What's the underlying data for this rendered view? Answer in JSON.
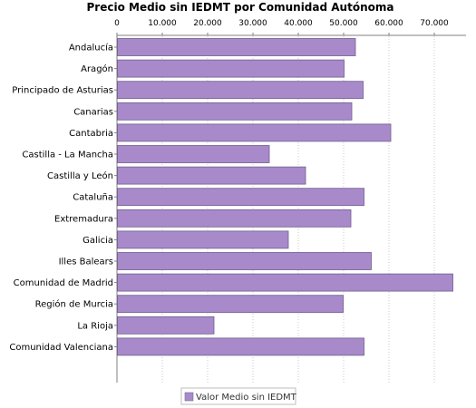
{
  "chart_data": {
    "type": "bar",
    "orientation": "horizontal",
    "title": "Precio Medio sin IEDMT por Comunidad Autónoma",
    "xlim": [
      0,
      77000
    ],
    "xticks": [
      0,
      10000,
      20000,
      30000,
      40000,
      50000,
      60000,
      70000
    ],
    "xtick_labels": [
      "0",
      "10.000",
      "20.000",
      "30.000",
      "40.000",
      "50.000",
      "60.000",
      "70.000"
    ],
    "axis_position": "top",
    "grid": true,
    "legend_position": "bottom",
    "categories": [
      "Andalucía",
      "Aragón",
      "Principado de Asturias",
      "Canarias",
      "Cantabria",
      "Castilla - La Mancha",
      "Castilla y León",
      "Cataluña",
      "Extremadura",
      "Galicia",
      "Illes Balears",
      "Comunidad de Madrid",
      "Región de Murcia",
      "La Rioja",
      "Comunidad Valenciana"
    ],
    "series": [
      {
        "name": "Valor Medio sin IEDMT",
        "color": "#a88acb",
        "values": [
          52500,
          50000,
          54200,
          51700,
          60300,
          33500,
          41500,
          54400,
          51500,
          37700,
          56000,
          74000,
          49800,
          21300,
          54400
        ]
      }
    ]
  }
}
